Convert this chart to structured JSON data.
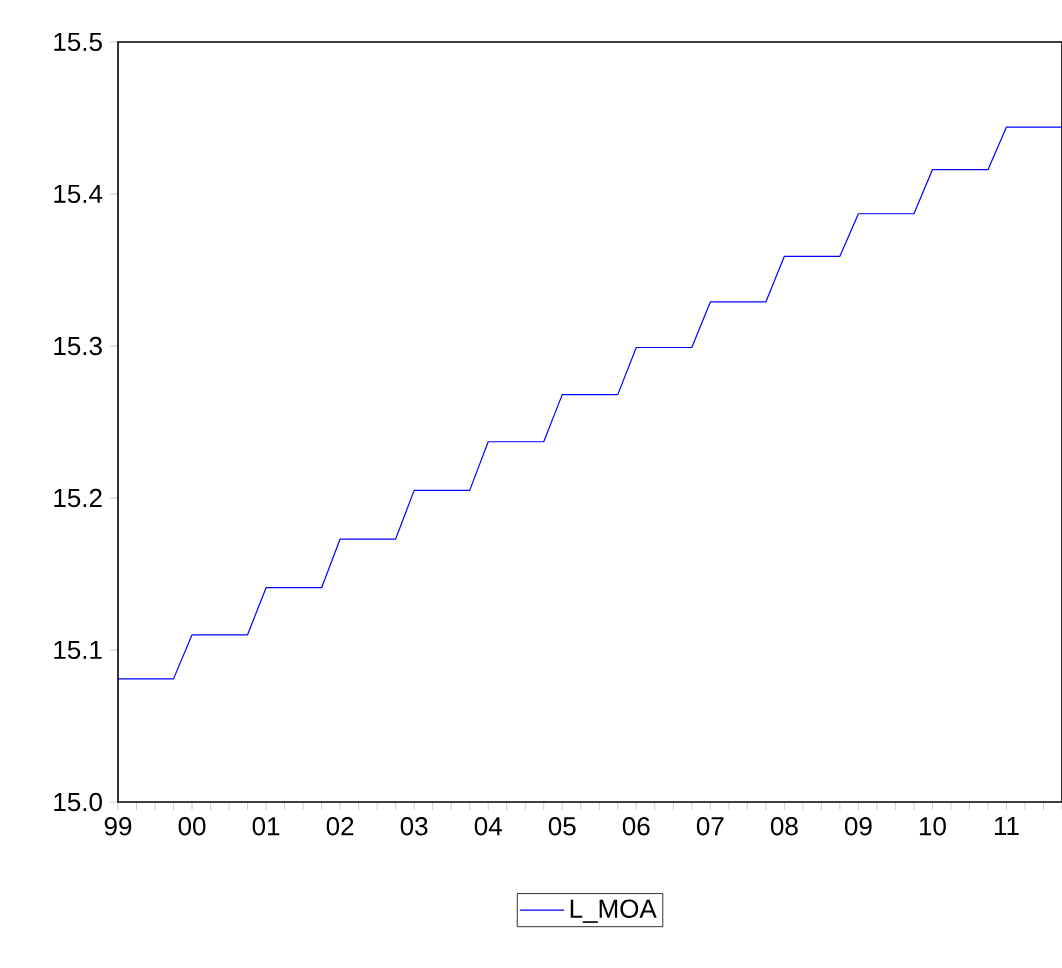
{
  "chart_data": {
    "type": "line",
    "xlim": [
      1999,
      2011.75
    ],
    "ylim": [
      15.0,
      15.5
    ],
    "xticks": [
      {
        "value": 1999,
        "label": "99"
      },
      {
        "value": 1999.25,
        "label": null
      },
      {
        "value": 1999.5,
        "label": null
      },
      {
        "value": 1999.75,
        "label": null
      },
      {
        "value": 2000,
        "label": "00"
      },
      {
        "value": 2000.25,
        "label": null
      },
      {
        "value": 2000.5,
        "label": null
      },
      {
        "value": 2000.75,
        "label": null
      },
      {
        "value": 2001,
        "label": "01"
      },
      {
        "value": 2001.25,
        "label": null
      },
      {
        "value": 2001.5,
        "label": null
      },
      {
        "value": 2001.75,
        "label": null
      },
      {
        "value": 2002,
        "label": "02"
      },
      {
        "value": 2002.25,
        "label": null
      },
      {
        "value": 2002.5,
        "label": null
      },
      {
        "value": 2002.75,
        "label": null
      },
      {
        "value": 2003,
        "label": "03"
      },
      {
        "value": 2003.25,
        "label": null
      },
      {
        "value": 2003.5,
        "label": null
      },
      {
        "value": 2003.75,
        "label": null
      },
      {
        "value": 2004,
        "label": "04"
      },
      {
        "value": 2004.25,
        "label": null
      },
      {
        "value": 2004.5,
        "label": null
      },
      {
        "value": 2004.75,
        "label": null
      },
      {
        "value": 2005,
        "label": "05"
      },
      {
        "value": 2005.25,
        "label": null
      },
      {
        "value": 2005.5,
        "label": null
      },
      {
        "value": 2005.75,
        "label": null
      },
      {
        "value": 2006,
        "label": "06"
      },
      {
        "value": 2006.25,
        "label": null
      },
      {
        "value": 2006.5,
        "label": null
      },
      {
        "value": 2006.75,
        "label": null
      },
      {
        "value": 2007,
        "label": "07"
      },
      {
        "value": 2007.25,
        "label": null
      },
      {
        "value": 2007.5,
        "label": null
      },
      {
        "value": 2007.75,
        "label": null
      },
      {
        "value": 2008,
        "label": "08"
      },
      {
        "value": 2008.25,
        "label": null
      },
      {
        "value": 2008.5,
        "label": null
      },
      {
        "value": 2008.75,
        "label": null
      },
      {
        "value": 2009,
        "label": "09"
      },
      {
        "value": 2009.25,
        "label": null
      },
      {
        "value": 2009.5,
        "label": null
      },
      {
        "value": 2009.75,
        "label": null
      },
      {
        "value": 2010,
        "label": "10"
      },
      {
        "value": 2010.25,
        "label": null
      },
      {
        "value": 2010.5,
        "label": null
      },
      {
        "value": 2010.75,
        "label": null
      },
      {
        "value": 2011,
        "label": "11"
      },
      {
        "value": 2011.25,
        "label": null
      },
      {
        "value": 2011.5,
        "label": null
      },
      {
        "value": 2011.75,
        "label": null
      }
    ],
    "yticks": [
      {
        "value": 15.0,
        "label": "15.0"
      },
      {
        "value": 15.1,
        "label": "15.1"
      },
      {
        "value": 15.2,
        "label": "15.2"
      },
      {
        "value": 15.3,
        "label": "15.3"
      },
      {
        "value": 15.4,
        "label": "15.4"
      },
      {
        "value": 15.5,
        "label": "15.5"
      }
    ],
    "grid": false,
    "legend": "bottom",
    "marker": "none",
    "line_style": "solid",
    "series": [
      {
        "name": "L_MOA",
        "color": "#0000ff",
        "x": [
          1999,
          1999.25,
          1999.5,
          1999.75,
          2000,
          2000.25,
          2000.5,
          2000.75,
          2001,
          2001.25,
          2001.5,
          2001.75,
          2002,
          2002.25,
          2002.5,
          2002.75,
          2003,
          2003.25,
          2003.5,
          2003.75,
          2004,
          2004.25,
          2004.5,
          2004.75,
          2005,
          2005.25,
          2005.5,
          2005.75,
          2006,
          2006.25,
          2006.5,
          2006.75,
          2007,
          2007.25,
          2007.5,
          2007.75,
          2008,
          2008.25,
          2008.5,
          2008.75,
          2009,
          2009.25,
          2009.5,
          2009.75,
          2010,
          2010.25,
          2010.5,
          2010.75,
          2011,
          2011.25,
          2011.5,
          2011.75
        ],
        "values": [
          15.081,
          15.081,
          15.081,
          15.081,
          15.11,
          15.11,
          15.11,
          15.11,
          15.141,
          15.141,
          15.141,
          15.141,
          15.173,
          15.173,
          15.173,
          15.173,
          15.205,
          15.205,
          15.205,
          15.205,
          15.237,
          15.237,
          15.237,
          15.237,
          15.268,
          15.268,
          15.268,
          15.268,
          15.299,
          15.299,
          15.299,
          15.299,
          15.329,
          15.329,
          15.329,
          15.329,
          15.359,
          15.359,
          15.359,
          15.359,
          15.387,
          15.387,
          15.387,
          15.387,
          15.416,
          15.416,
          15.416,
          15.416,
          15.444,
          15.444,
          15.444,
          15.444
        ]
      }
    ]
  }
}
